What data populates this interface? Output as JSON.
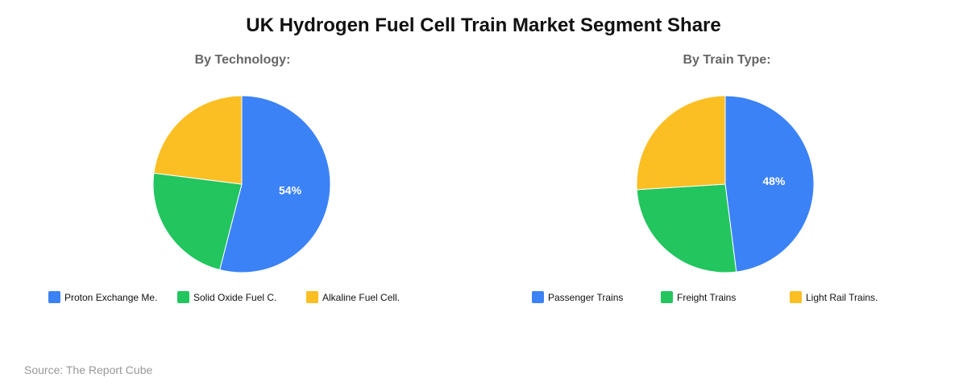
{
  "title": "UK Hydrogen Fuel Cell Train Market Segment Share",
  "source": "Source: The Report Cube",
  "chart_data": [
    {
      "type": "pie",
      "title": "By Technology:",
      "categories": [
        "Proton Exchange Me.",
        "Solid Oxide Fuel C.",
        "Alkaline Fuel Cell."
      ],
      "values": [
        54,
        23,
        23
      ],
      "colors": [
        "#3b82f6",
        "#22c55e",
        "#fbbf24"
      ],
      "data_labels": [
        "54%",
        "",
        ""
      ],
      "legend_position": "bottom"
    },
    {
      "type": "pie",
      "title": "By Train Type:",
      "categories": [
        "Passenger Trains",
        "Freight Trains",
        "Light Rail Trains."
      ],
      "values": [
        48,
        26,
        26
      ],
      "colors": [
        "#3b82f6",
        "#22c55e",
        "#fbbf24"
      ],
      "data_labels": [
        "48%",
        "",
        ""
      ],
      "legend_position": "bottom"
    }
  ]
}
